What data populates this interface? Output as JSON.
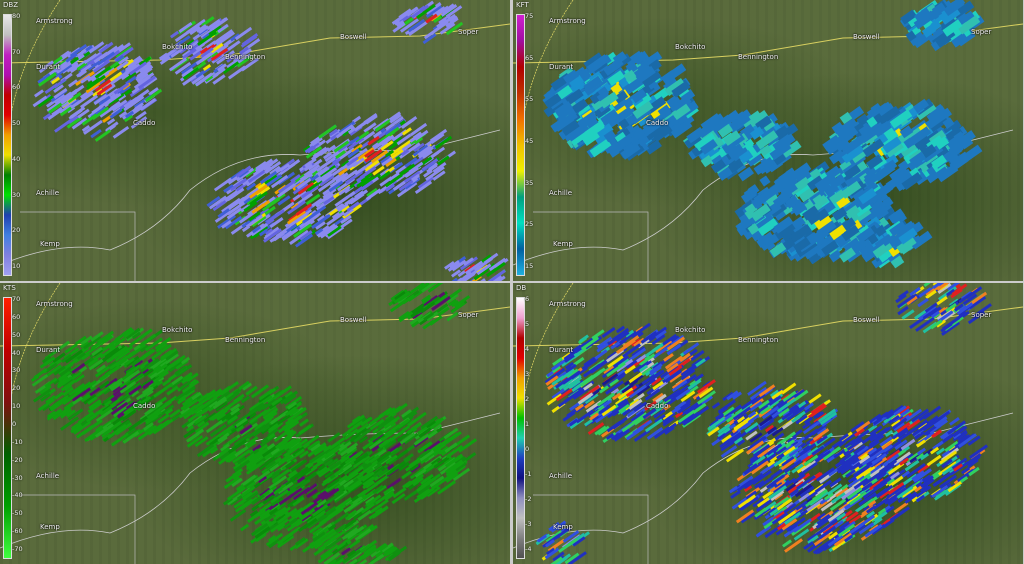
{
  "towns": [
    "Armstrong",
    "Durant",
    "Bokchito",
    "Bennington",
    "Caddo",
    "Boswell",
    "Soper",
    "Achille",
    "Kemp"
  ],
  "panels": [
    {
      "id": "reflectivity",
      "unit": "DBZ",
      "ticks": [
        "80",
        "70",
        "60",
        "50",
        "40",
        "30",
        "20",
        "10"
      ],
      "scale": [
        "#e8e8e8",
        "#c0c0c0",
        "#c020c0",
        "#b010b0",
        "#c00000",
        "#e00000",
        "#f0a000",
        "#f0e000",
        "#008000",
        "#00e000",
        "#2040b0",
        "#4080e0",
        "#8080e0",
        "#a0a0f0"
      ],
      "palette": [
        "#8a8aee",
        "#8a8aee",
        "#6464e0",
        "#3f5fd6",
        "#22c422",
        "#00a000",
        "#f0e000",
        "#f0a000",
        "#e02020"
      ]
    },
    {
      "id": "echo-tops",
      "unit": "KFT",
      "ticks": [
        "75",
        "65",
        "55",
        "45",
        "35",
        "25",
        "15"
      ],
      "scale": [
        "#d020d0",
        "#a010a0",
        "#b00000",
        "#c03000",
        "#f07000",
        "#f0c000",
        "#f0f000",
        "#00a080",
        "#00e0c0",
        "#0060a0",
        "#20b0e0"
      ],
      "palette": [
        "#1e78c0",
        "#1a6aa8",
        "#30c0b0",
        "#20d0c0",
        "#1a90d0",
        "#f0e000"
      ]
    },
    {
      "id": "velocity",
      "unit": "KTS",
      "ticks": [
        "70",
        "60",
        "50",
        "40",
        "30",
        "20",
        "10",
        "0",
        "-10",
        "-20",
        "-30",
        "-40",
        "-50",
        "-60",
        "-70"
      ],
      "scale": [
        "#ff2000",
        "#c00000",
        "#801010",
        "#006000",
        "#00a000",
        "#40ff40"
      ],
      "palette": [
        "#10a010",
        "#109010",
        "#20a820",
        "#0a8a0a",
        "#5a106a"
      ]
    },
    {
      "id": "differential-reflectivity",
      "unit": "DB",
      "ticks": [
        "6",
        "5",
        "4",
        "3",
        "2",
        "1",
        "0",
        "-1",
        "-2",
        "-3",
        "-4"
      ],
      "scale": [
        "#ffffff",
        "#f0a0d0",
        "#b00000",
        "#e00000",
        "#f0a000",
        "#f0e000",
        "#00c000",
        "#20d0b0",
        "#2040c0",
        "#101080",
        "#9090c0",
        "#c0c0c0",
        "#808080",
        "#505050"
      ],
      "palette": [
        "#2030c0",
        "#3050e0",
        "#20c0a0",
        "#30d060",
        "#f0e000",
        "#f08020",
        "#e02020",
        "#c0c0c0",
        "#9090e0",
        "#1a1a90"
      ]
    }
  ]
}
